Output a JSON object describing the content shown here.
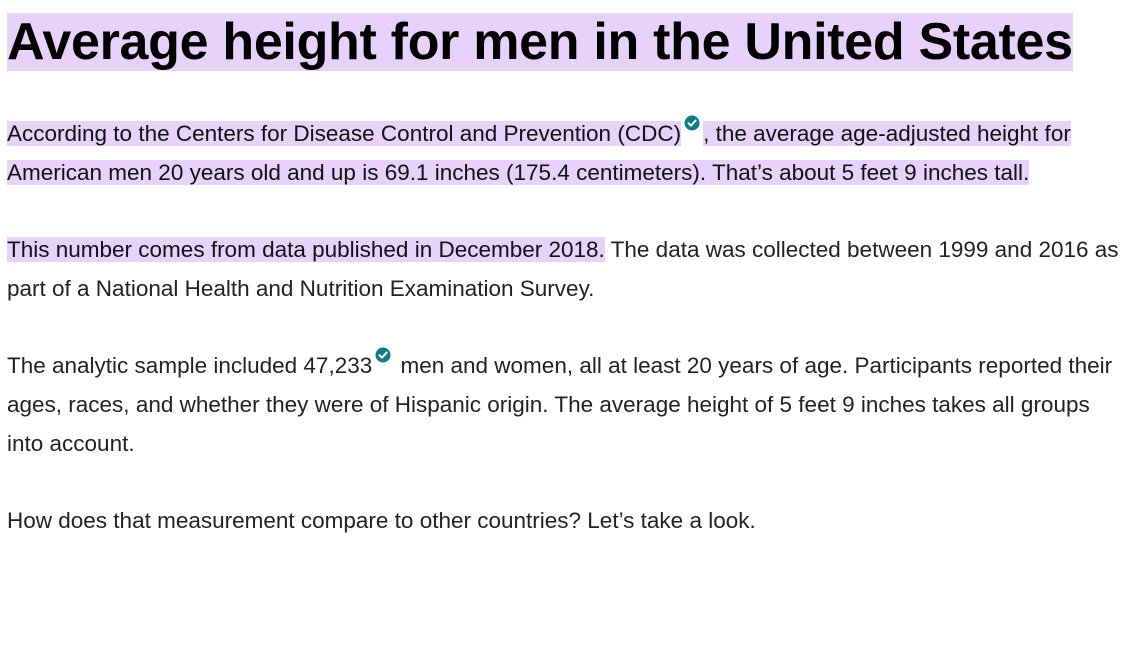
{
  "article": {
    "title": "Average height for men in the United States",
    "paragraphs": [
      [
        "According to the Centers for Disease Control and Prevention (CDC)",
        ", the average age-adjusted height for American men 20 years old and up is 69.1 inches (175.4 centimeters). That’s about 5 feet 9 inches tall."
      ],
      [
        "This number comes from data published in December 2018.",
        " The data was collected between 1999 and 2016 as part of a National Health and Nutrition Examination Survey."
      ],
      [
        "The analytic sample included 47,233",
        " men and women, all at least 20 years of age. Participants reported their ages, races, and whether they were of Hispanic origin. The average height of 5 feet 9 inches takes all groups into account."
      ],
      [
        "How does that measurement compare to other countries? Let’s take a look."
      ]
    ]
  }
}
